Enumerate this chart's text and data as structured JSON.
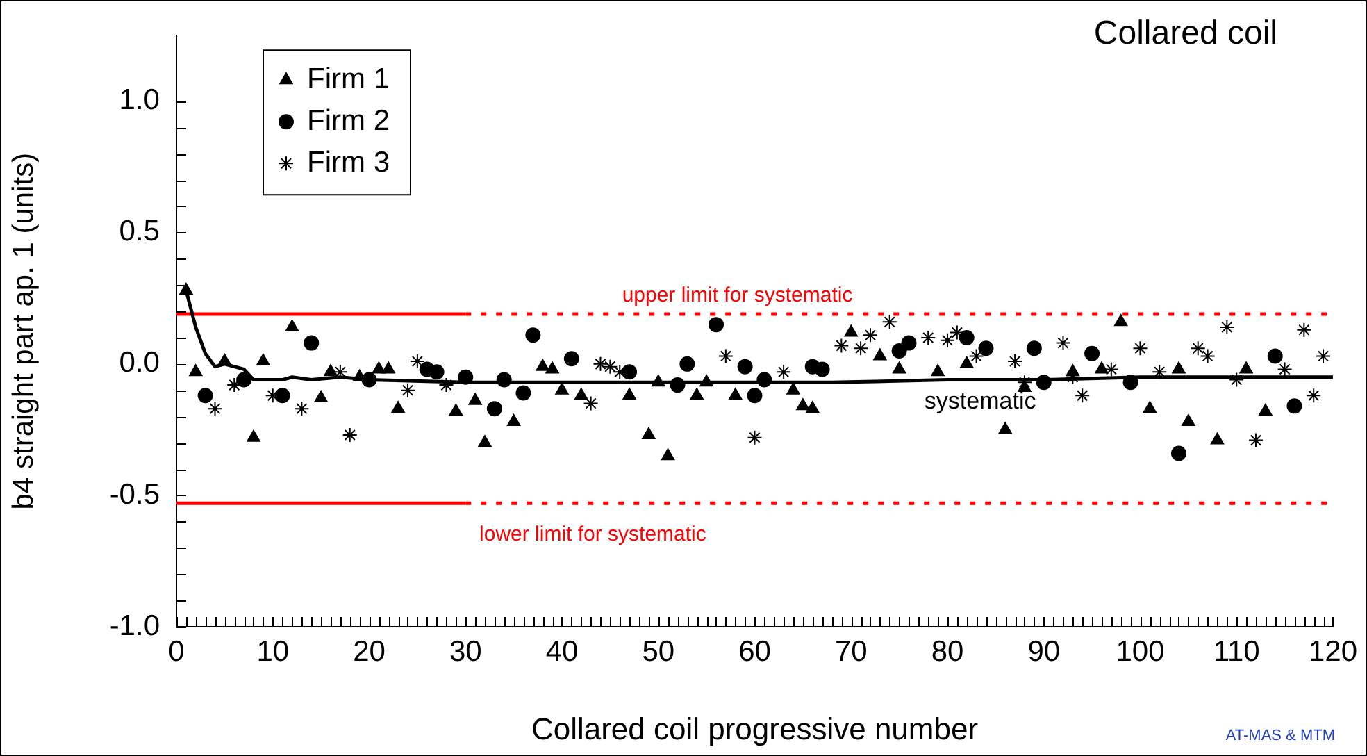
{
  "chart_data": {
    "type": "scatter",
    "title": "Collared coil",
    "xlabel": "Collared coil progressive number",
    "ylabel": "b4 straight part ap. 1 (units)",
    "xlim": [
      0,
      120
    ],
    "ylim": [
      -1,
      1.25
    ],
    "xticks": [
      0,
      {
        "value": 1,
        "label": null
      },
      {
        "value": 2,
        "label": null
      },
      {
        "value": 3,
        "label": null
      },
      {
        "value": 4,
        "label": null
      },
      {
        "value": 5,
        "label": null
      },
      {
        "value": 6,
        "label": null
      },
      {
        "value": 7,
        "label": null
      },
      {
        "value": 8,
        "label": null
      },
      {
        "value": 9,
        "label": null
      },
      10,
      {
        "value": 11,
        "label": null
      },
      {
        "value": 12,
        "label": null
      },
      {
        "value": 13,
        "label": null
      },
      {
        "value": 14,
        "label": null
      },
      {
        "value": 15,
        "label": null
      },
      {
        "value": 16,
        "label": null
      },
      {
        "value": 17,
        "label": null
      },
      {
        "value": 18,
        "label": null
      },
      {
        "value": 19,
        "label": null
      },
      20,
      {
        "value": 21,
        "label": null
      },
      {
        "value": 22,
        "label": null
      },
      {
        "value": 23,
        "label": null
      },
      {
        "value": 24,
        "label": null
      },
      {
        "value": 25,
        "label": null
      },
      {
        "value": 26,
        "label": null
      },
      {
        "value": 27,
        "label": null
      },
      {
        "value": 28,
        "label": null
      },
      {
        "value": 29,
        "label": null
      },
      30,
      {
        "value": 31,
        "label": null
      },
      {
        "value": 32,
        "label": null
      },
      {
        "value": 33,
        "label": null
      },
      {
        "value": 34,
        "label": null
      },
      {
        "value": 35,
        "label": null
      },
      {
        "value": 36,
        "label": null
      },
      {
        "value": 37,
        "label": null
      },
      {
        "value": 38,
        "label": null
      },
      {
        "value": 39,
        "label": null
      },
      40,
      {
        "value": 41,
        "label": null
      },
      {
        "value": 42,
        "label": null
      },
      {
        "value": 43,
        "label": null
      },
      {
        "value": 44,
        "label": null
      },
      {
        "value": 45,
        "label": null
      },
      {
        "value": 46,
        "label": null
      },
      {
        "value": 47,
        "label": null
      },
      {
        "value": 48,
        "label": null
      },
      {
        "value": 49,
        "label": null
      },
      50,
      {
        "value": 51,
        "label": null
      },
      {
        "value": 52,
        "label": null
      },
      {
        "value": 53,
        "label": null
      },
      {
        "value": 54,
        "label": null
      },
      {
        "value": 55,
        "label": null
      },
      {
        "value": 56,
        "label": null
      },
      {
        "value": 57,
        "label": null
      },
      {
        "value": 58,
        "label": null
      },
      {
        "value": 59,
        "label": null
      },
      60,
      {
        "value": 61,
        "label": null
      },
      {
        "value": 62,
        "label": null
      },
      {
        "value": 63,
        "label": null
      },
      {
        "value": 64,
        "label": null
      },
      {
        "value": 65,
        "label": null
      },
      {
        "value": 66,
        "label": null
      },
      {
        "value": 67,
        "label": null
      },
      {
        "value": 68,
        "label": null
      },
      {
        "value": 69,
        "label": null
      },
      70,
      {
        "value": 71,
        "label": null
      },
      {
        "value": 72,
        "label": null
      },
      {
        "value": 73,
        "label": null
      },
      {
        "value": 74,
        "label": null
      },
      {
        "value": 75,
        "label": null
      },
      {
        "value": 76,
        "label": null
      },
      {
        "value": 77,
        "label": null
      },
      {
        "value": 78,
        "label": null
      },
      {
        "value": 79,
        "label": null
      },
      80,
      {
        "value": 81,
        "label": null
      },
      {
        "value": 82,
        "label": null
      },
      {
        "value": 83,
        "label": null
      },
      {
        "value": 84,
        "label": null
      },
      {
        "value": 85,
        "label": null
      },
      {
        "value": 86,
        "label": null
      },
      {
        "value": 87,
        "label": null
      },
      {
        "value": 88,
        "label": null
      },
      {
        "value": 89,
        "label": null
      },
      90,
      {
        "value": 91,
        "label": null
      },
      {
        "value": 92,
        "label": null
      },
      {
        "value": 93,
        "label": null
      },
      {
        "value": 94,
        "label": null
      },
      {
        "value": 95,
        "label": null
      },
      {
        "value": 96,
        "label": null
      },
      {
        "value": 97,
        "label": null
      },
      {
        "value": 98,
        "label": null
      },
      {
        "value": 99,
        "label": null
      },
      100,
      {
        "value": 101,
        "label": null
      },
      {
        "value": 102,
        "label": null
      },
      {
        "value": 103,
        "label": null
      },
      {
        "value": 104,
        "label": null
      },
      {
        "value": 105,
        "label": null
      },
      {
        "value": 106,
        "label": null
      },
      {
        "value": 107,
        "label": null
      },
      {
        "value": 108,
        "label": null
      },
      {
        "value": 109,
        "label": null
      },
      110,
      {
        "value": 111,
        "label": null
      },
      {
        "value": 112,
        "label": null
      },
      {
        "value": 113,
        "label": null
      },
      {
        "value": 114,
        "label": null
      },
      {
        "value": 115,
        "label": null
      },
      {
        "value": 116,
        "label": null
      },
      {
        "value": 117,
        "label": null
      },
      {
        "value": 118,
        "label": null
      },
      {
        "value": 119,
        "label": null
      },
      120
    ],
    "yticks": [
      {
        "value": -1,
        "label": "-1.0"
      },
      {
        "value": -0.9,
        "label": null
      },
      {
        "value": -0.8,
        "label": null
      },
      {
        "value": -0.7,
        "label": null
      },
      {
        "value": -0.6,
        "label": null
      },
      -0.5,
      {
        "value": -0.4,
        "label": null
      },
      {
        "value": -0.3,
        "label": null
      },
      {
        "value": -0.2,
        "label": null
      },
      {
        "value": -0.1,
        "label": null
      },
      {
        "value": 0,
        "label": "0.0"
      },
      {
        "value": 0.1,
        "label": null
      },
      {
        "value": 0.2,
        "label": null
      },
      {
        "value": 0.3,
        "label": null
      },
      {
        "value": 0.4,
        "label": null
      },
      0.5,
      {
        "value": 0.6,
        "label": null
      },
      {
        "value": 0.7,
        "label": null
      },
      {
        "value": 0.8,
        "label": null
      },
      {
        "value": 0.9,
        "label": null
      },
      {
        "value": 1,
        "label": "1.0"
      }
    ],
    "grid": false,
    "legend": "top left",
    "series": [
      {
        "name": "Firm 1",
        "color": "#000000",
        "marker": "triangle",
        "x": [
          1,
          2,
          5,
          8,
          9,
          12,
          15,
          16,
          19,
          21,
          22,
          23,
          29,
          31,
          32,
          35,
          38,
          39,
          40,
          42,
          47,
          49,
          50,
          51,
          54,
          55,
          58,
          64,
          65,
          66,
          70,
          73,
          75,
          79,
          82,
          86,
          88,
          93,
          96,
          98,
          101,
          104,
          105,
          108,
          111,
          113
        ],
        "values": [
          0.28,
          -0.03,
          0.01,
          -0.28,
          0.01,
          0.14,
          -0.13,
          -0.03,
          -0.05,
          -0.02,
          -0.02,
          -0.17,
          -0.18,
          -0.14,
          -0.3,
          -0.22,
          -0.01,
          -0.02,
          -0.1,
          -0.12,
          -0.12,
          -0.27,
          -0.07,
          -0.35,
          -0.12,
          -0.07,
          -0.12,
          -0.1,
          -0.16,
          -0.17,
          0.12,
          0.03,
          -0.02,
          -0.03,
          0.0,
          -0.25,
          -0.09,
          -0.03,
          -0.02,
          0.16,
          -0.17,
          -0.02,
          -0.22,
          -0.29,
          -0.02,
          -0.18
        ]
      },
      {
        "name": "Firm 2",
        "color": "#000000",
        "marker": "circle",
        "x": [
          3,
          7,
          11,
          14,
          20,
          26,
          27,
          30,
          33,
          34,
          36,
          37,
          41,
          47,
          52,
          53,
          56,
          59,
          60,
          61,
          66,
          67,
          75,
          76,
          82,
          84,
          89,
          90,
          95,
          99,
          104,
          114,
          116
        ],
        "values": [
          -0.12,
          -0.06,
          -0.12,
          0.08,
          -0.06,
          -0.02,
          -0.03,
          -0.05,
          -0.17,
          -0.06,
          -0.11,
          0.11,
          0.02,
          -0.03,
          -0.08,
          0.0,
          0.15,
          -0.01,
          -0.12,
          -0.06,
          -0.01,
          -0.02,
          0.05,
          0.08,
          0.1,
          0.06,
          0.06,
          -0.07,
          0.04,
          -0.07,
          -0.34,
          0.03,
          -0.16
        ]
      },
      {
        "name": "Firm 3",
        "color": "#000000",
        "marker": "cross",
        "x": [
          4,
          6,
          10,
          13,
          17,
          18,
          24,
          25,
          28,
          43,
          44,
          45,
          46,
          57,
          60,
          63,
          69,
          71,
          72,
          74,
          78,
          80,
          81,
          83,
          87,
          88,
          92,
          93,
          94,
          97,
          100,
          102,
          106,
          107,
          109,
          110,
          112,
          115,
          117,
          118,
          119
        ],
        "values": [
          -0.17,
          -0.08,
          -0.12,
          -0.17,
          -0.03,
          -0.27,
          -0.1,
          0.01,
          -0.08,
          -0.15,
          0.0,
          -0.01,
          -0.03,
          0.03,
          -0.28,
          -0.03,
          0.07,
          0.06,
          0.11,
          0.16,
          0.1,
          0.09,
          0.12,
          0.03,
          0.01,
          -0.07,
          0.08,
          -0.05,
          -0.12,
          -0.02,
          0.06,
          -0.03,
          0.06,
          0.03,
          0.14,
          -0.06,
          -0.29,
          -0.02,
          0.13,
          -0.12,
          0.03
        ]
      },
      {
        "type": "line",
        "color": "#000000",
        "marker": "none",
        "line_style": "solid",
        "x": [
          1,
          2,
          3,
          4,
          5,
          7,
          8,
          11,
          12,
          14,
          17,
          20,
          30,
          40,
          50,
          60,
          68,
          80,
          90,
          100,
          110,
          120
        ],
        "values": [
          0.28,
          0.14,
          0.04,
          -0.01,
          0.0,
          -0.02,
          -0.06,
          -0.06,
          -0.05,
          -0.06,
          -0.05,
          -0.06,
          -0.07,
          -0.07,
          -0.07,
          -0.07,
          -0.07,
          -0.06,
          -0.06,
          -0.05,
          -0.05,
          -0.05
        ]
      },
      {
        "type": "line",
        "color": "#ff0000",
        "marker": "none",
        "line_style": "solid",
        "x": [
          0,
          30
        ],
        "values": [
          0.19,
          0.19
        ]
      },
      {
        "type": "line",
        "color": "#ff0000",
        "marker": "none",
        "line_style": "dotted",
        "x": [
          30,
          120
        ],
        "values": [
          0.19,
          0.19
        ]
      },
      {
        "type": "line",
        "color": "#ff0000",
        "marker": "none",
        "line_style": "solid",
        "x": [
          0,
          30
        ],
        "values": [
          -0.53,
          -0.53
        ]
      },
      {
        "type": "line",
        "color": "#ff0000",
        "marker": "none",
        "line_style": "dotted",
        "x": [
          30,
          120
        ],
        "values": [
          -0.53,
          -0.53
        ]
      }
    ],
    "annotations": [
      "upper limit for systematic",
      "lower limit for systematic",
      "systematic",
      "AT-MAS & MTM"
    ]
  }
}
